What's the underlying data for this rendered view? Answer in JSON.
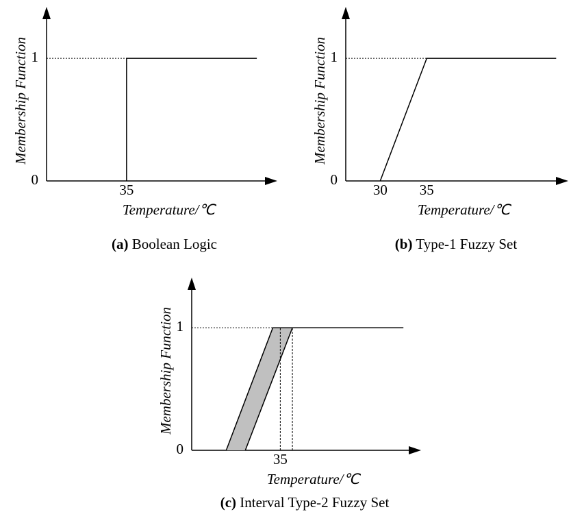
{
  "chart_data": [
    {
      "type": "line",
      "caption_label": "(a)",
      "caption": "Boolean Logic",
      "xlabel": "Temperature/℃",
      "ylabel": "Membership Function",
      "xlim": [
        26.4,
        51.2
      ],
      "ylim": [
        0,
        1.42
      ],
      "xticks": [
        35
      ],
      "yticks": [
        0,
        1
      ],
      "series": [
        {
          "color": "#000000",
          "x": [
            35,
            35,
            49
          ],
          "values": [
            0,
            1,
            1
          ]
        }
      ]
    },
    {
      "type": "line",
      "caption_label": "(b)",
      "caption": "Type-1 Fuzzy Set",
      "xlabel": "Temperature/℃",
      "ylabel": "Membership Function",
      "xlim": [
        26.3,
        50.2
      ],
      "ylim": [
        0,
        1.42
      ],
      "xticks": [
        30,
        35
      ],
      "yticks": [
        0,
        1
      ],
      "series": [
        {
          "color": "#000000",
          "x": [
            30,
            35,
            48.9
          ],
          "values": [
            0,
            1,
            1
          ]
        }
      ]
    },
    {
      "type": "band",
      "caption_label": "(c)",
      "caption": "Interval Type-2 Fuzzy Set",
      "xlabel": "Temperature/℃",
      "ylabel": "Membership Function",
      "xlim": [
        25.5,
        50.1
      ],
      "ylim": [
        0,
        1.41
      ],
      "xticks": [
        35
      ],
      "yticks": [
        0,
        1
      ],
      "fill": "#c0c0c0",
      "series": [
        {
          "color": "#000000",
          "x": [
            29.2,
            34.2,
            48.2
          ],
          "values": [
            0,
            1,
            1
          ]
        },
        {
          "color": "#000000",
          "x": [
            31.25,
            36.3,
            48.2
          ],
          "values": [
            0,
            1,
            1
          ]
        }
      ]
    }
  ]
}
